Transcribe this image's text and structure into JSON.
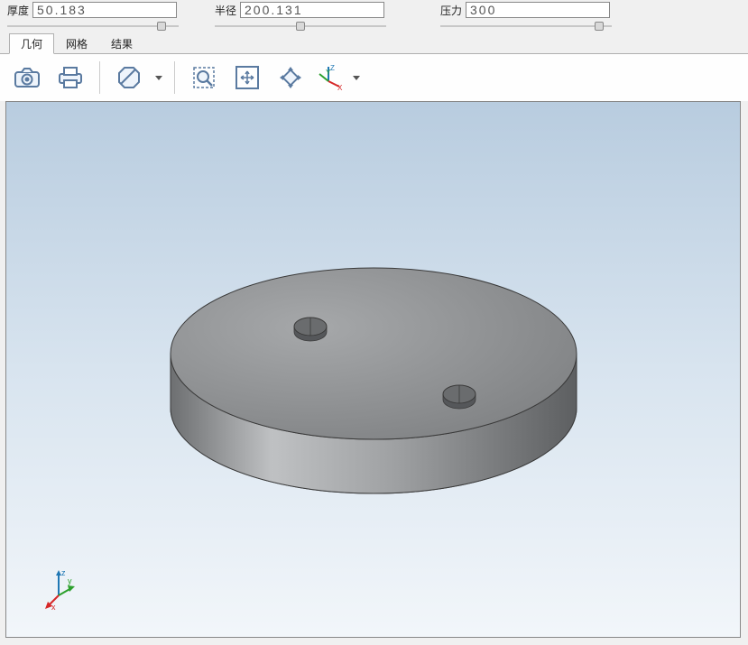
{
  "params": {
    "thickness": {
      "label": "厚度",
      "value": "50.183",
      "slider_pos": 0.92
    },
    "radius": {
      "label": "半径",
      "value": "200.131",
      "slider_pos": 0.5
    },
    "pressure": {
      "label": "压力",
      "value": "300",
      "slider_pos": 0.95
    }
  },
  "tabs": [
    {
      "label": "几何",
      "active": true
    },
    {
      "label": "网格",
      "active": false
    },
    {
      "label": "结果",
      "active": false
    }
  ],
  "toolbar_icons": [
    "camera",
    "print",
    "octagon",
    "zoom-window",
    "pan",
    "rotate",
    "axes"
  ],
  "axes": {
    "big": {
      "x": "X",
      "y": "Y",
      "z": "Z",
      "x_color": "#d62728",
      "y_color": "#2ca02c",
      "z_color": "#1f77b4"
    },
    "small": {
      "x": "x",
      "y": "y",
      "z": "z",
      "x_color": "#d62728",
      "y_color": "#2ca02c",
      "z_color": "#1f77b4"
    }
  },
  "model": {
    "type": "disc",
    "fill_top": "#8f9193",
    "fill_side_light": "#bfc1c3",
    "fill_side_dark": "#6d6f71",
    "edge": "#3a3a3a",
    "hole_fill": "#77797b"
  },
  "colors": {
    "app_bg": "#f0f0f0",
    "viewport_top": "#b8ccdf",
    "viewport_bottom": "#f2f6fa",
    "icon_stroke": "#5a7aa0",
    "icon_fill": "#eef4fb"
  }
}
